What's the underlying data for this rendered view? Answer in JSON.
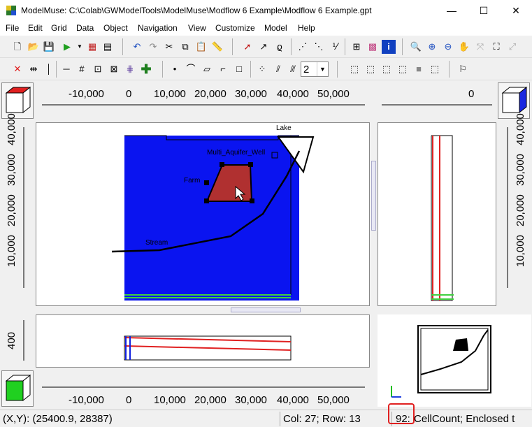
{
  "window": {
    "title": "ModelMuse: C:\\Colab\\GWModelTools\\ModelMuse\\Modflow 6 Example\\Modflow 6 Example.gpt",
    "minimize": "—",
    "maximize": "☐",
    "close": "✕"
  },
  "menu": [
    "File",
    "Edit",
    "Grid",
    "Data",
    "Object",
    "Navigation",
    "View",
    "Customize",
    "Model",
    "Help"
  ],
  "toolbar": {
    "zoom_value": "2"
  },
  "top_ruler": {
    "labels": [
      "-10,000",
      "0",
      "10,000",
      "20,000",
      "30,000",
      "40,000",
      "50,000"
    ],
    "side_label": "0"
  },
  "left_ruler": {
    "labels": [
      "10,000",
      "20,000",
      "30,000",
      "40,000"
    ]
  },
  "right_ruler": {
    "labels": [
      "10,000",
      "20,000",
      "30,000",
      "40,000"
    ]
  },
  "front_ruler": {
    "labels": [
      "400"
    ]
  },
  "bottom_ruler": {
    "labels": [
      "-10,000",
      "0",
      "10,000",
      "20,000",
      "30,000",
      "40,000",
      "50,000"
    ]
  },
  "top_view": {
    "labels": {
      "lake": "Lake",
      "well": "Multi_Aquifer_Well",
      "farm": "Farm",
      "stream": "Stream"
    },
    "colors": {
      "domain": "#0a14f0",
      "farm": "#b03030",
      "layers": "#30c040"
    }
  },
  "status": {
    "coords": "(X,Y): (25400.9, 28387)",
    "cell": "Col: 27; Row: 13",
    "count_value": "92:",
    "message": "CellCount; Enclosed t"
  }
}
